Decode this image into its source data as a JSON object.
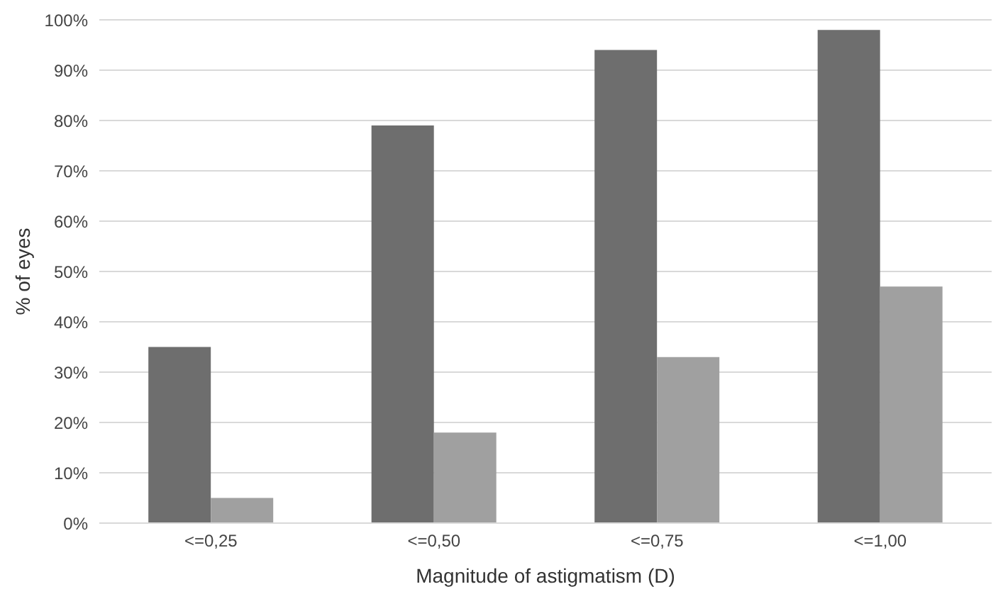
{
  "chart_data": {
    "type": "bar",
    "xlabel": "Magnitude of astigmatism (D)",
    "ylabel": "% of eyes",
    "categories": [
      "<=0,25",
      "<=0,50",
      "<=0,75",
      "<=1,00"
    ],
    "series": [
      {
        "color": "#6e6e6e",
        "values": [
          35,
          79,
          94,
          98
        ]
      },
      {
        "color": "#a0a0a0",
        "values": [
          5,
          18,
          33,
          47
        ]
      }
    ],
    "ylim": [
      0,
      100
    ],
    "yticks": [
      {
        "value": 0,
        "label": "0%"
      },
      {
        "value": 10,
        "label": "10%"
      },
      {
        "value": 20,
        "label": "20%"
      },
      {
        "value": 30,
        "label": "30%"
      },
      {
        "value": 40,
        "label": "40%"
      },
      {
        "value": 50,
        "label": "50%"
      },
      {
        "value": 60,
        "label": "60%"
      },
      {
        "value": 70,
        "label": "70%"
      },
      {
        "value": 80,
        "label": "80%"
      },
      {
        "value": 90,
        "label": "90%"
      },
      {
        "value": 100,
        "label": "100%"
      }
    ],
    "grid": "y"
  }
}
